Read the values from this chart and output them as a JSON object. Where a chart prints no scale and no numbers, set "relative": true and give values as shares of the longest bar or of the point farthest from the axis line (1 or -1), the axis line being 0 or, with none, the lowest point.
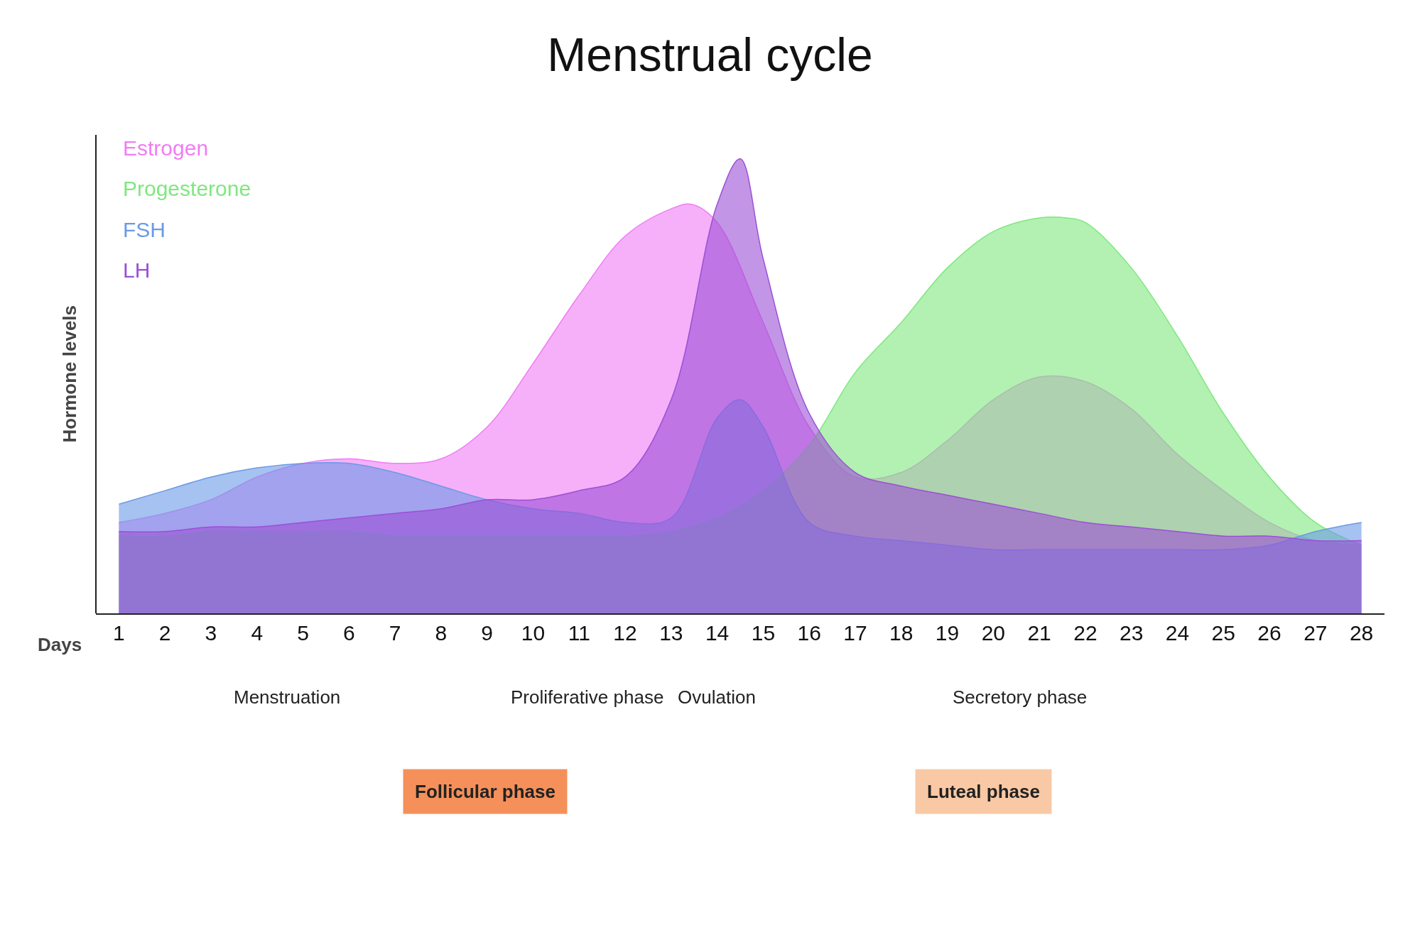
{
  "chart_data": {
    "type": "area",
    "title": "Menstrual cycle",
    "ylabel": "Hormone levels",
    "xlabel": "Days",
    "relative": true,
    "legend": "top left",
    "xlim": [
      0.5,
      28.5
    ],
    "xticks": [
      1,
      2,
      3,
      4,
      5,
      6,
      7,
      8,
      9,
      10,
      11,
      12,
      13,
      14,
      15,
      16,
      17,
      18,
      19,
      20,
      21,
      22,
      23,
      24,
      25,
      26,
      27,
      28
    ],
    "series": [
      {
        "name": "Estrogen",
        "color": "#f07cf5",
        "x": [
          1,
          2,
          3,
          4,
          5,
          6,
          7,
          8,
          9,
          10,
          11,
          12,
          13,
          13.44,
          14,
          15,
          16,
          17,
          18,
          19,
          20,
          21,
          22,
          23,
          24,
          25,
          26,
          27,
          28
        ],
        "values": [
          0.2,
          0.22,
          0.25,
          0.3,
          0.33,
          0.34,
          0.33,
          0.34,
          0.41,
          0.55,
          0.7,
          0.83,
          0.89,
          0.9,
          0.86,
          0.64,
          0.41,
          0.3,
          0.31,
          0.38,
          0.47,
          0.52,
          0.51,
          0.45,
          0.35,
          0.27,
          0.2,
          0.16,
          0.15
        ]
      },
      {
        "name": "Progesterone",
        "color": "#7ee87e",
        "x": [
          1,
          2,
          3,
          4,
          5,
          6,
          7,
          8,
          9,
          10,
          11,
          12,
          13,
          14,
          15,
          16,
          17,
          18,
          19,
          20,
          21,
          21.6,
          22,
          23,
          24,
          25,
          26,
          27,
          28
        ],
        "values": [
          0.17,
          0.17,
          0.18,
          0.18,
          0.18,
          0.18,
          0.17,
          0.17,
          0.17,
          0.17,
          0.17,
          0.17,
          0.18,
          0.21,
          0.27,
          0.37,
          0.53,
          0.64,
          0.76,
          0.84,
          0.87,
          0.87,
          0.86,
          0.76,
          0.61,
          0.44,
          0.3,
          0.2,
          0.15
        ]
      },
      {
        "name": "FSH",
        "color": "#6a9ae6",
        "x": [
          1,
          2,
          3,
          4,
          5,
          6,
          7,
          8,
          9,
          10,
          11,
          12,
          13,
          14,
          14.5,
          15,
          16,
          17,
          18,
          19,
          20,
          21,
          22,
          23,
          24,
          25,
          26,
          27,
          28
        ],
        "values": [
          0.24,
          0.27,
          0.3,
          0.32,
          0.33,
          0.33,
          0.31,
          0.28,
          0.25,
          0.23,
          0.22,
          0.2,
          0.21,
          0.43,
          0.47,
          0.41,
          0.2,
          0.17,
          0.16,
          0.15,
          0.14,
          0.14,
          0.14,
          0.14,
          0.14,
          0.14,
          0.15,
          0.18,
          0.2
        ]
      },
      {
        "name": "LH",
        "color": "#9b4fd6",
        "x": [
          1,
          2,
          3,
          4,
          5,
          6,
          7,
          8,
          9,
          10,
          11,
          12,
          13,
          14,
          14.5,
          15,
          16,
          17,
          18,
          19,
          20,
          21,
          22,
          23,
          24,
          25,
          26,
          27,
          28
        ],
        "values": [
          0.18,
          0.18,
          0.19,
          0.19,
          0.2,
          0.21,
          0.22,
          0.23,
          0.25,
          0.25,
          0.27,
          0.3,
          0.47,
          0.9,
          1.0,
          0.78,
          0.44,
          0.31,
          0.28,
          0.26,
          0.24,
          0.22,
          0.2,
          0.19,
          0.18,
          0.17,
          0.17,
          0.16,
          0.16
        ]
      }
    ],
    "annotations": [
      "Menstruation",
      "Proliferative phase",
      "Ovulation",
      "Secretory phase",
      "Follicular phase",
      "Luteal phase"
    ]
  }
}
